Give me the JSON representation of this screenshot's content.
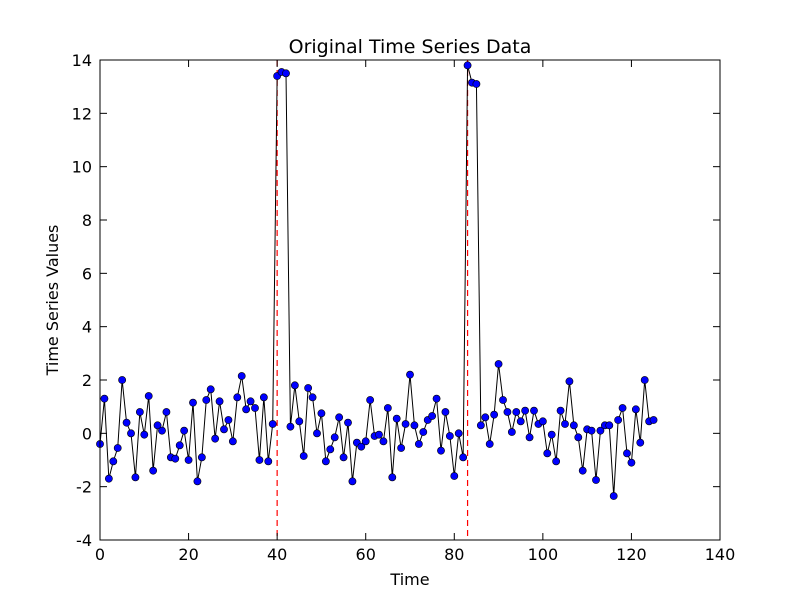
{
  "chart_data": {
    "type": "line",
    "title": "Original Time Series Data",
    "xlabel": "Time",
    "ylabel": "Time Series Values",
    "xlim": [
      0,
      140
    ],
    "ylim": [
      -4,
      14
    ],
    "xticks": [
      0,
      20,
      40,
      60,
      80,
      100,
      120,
      140
    ],
    "yticks": [
      -4,
      -2,
      0,
      2,
      4,
      6,
      8,
      10,
      12,
      14
    ],
    "grid": false,
    "legend": "none",
    "x_start": 0,
    "x_step": 1,
    "series": [
      {
        "color": "#0000ff",
        "line_color": "#000000",
        "marker": "circle",
        "values": [
          -0.4,
          1.3,
          -1.7,
          -1.05,
          -0.55,
          2.0,
          0.4,
          0.0,
          -1.65,
          0.8,
          -0.05,
          1.4,
          -1.4,
          0.3,
          0.1,
          0.8,
          -0.9,
          -0.95,
          -0.45,
          0.1,
          -1.0,
          1.15,
          -1.8,
          -0.9,
          1.25,
          1.65,
          -0.2,
          1.2,
          0.15,
          0.5,
          -0.3,
          1.35,
          2.15,
          0.9,
          1.2,
          0.95,
          -1.0,
          1.35,
          -1.05,
          0.35,
          13.4,
          13.55,
          13.5,
          0.25,
          1.8,
          0.45,
          -0.85,
          1.7,
          1.35,
          0.0,
          0.75,
          -1.05,
          -0.6,
          -0.15,
          0.6,
          -0.9,
          0.4,
          -1.8,
          -0.35,
          -0.5,
          -0.3,
          1.25,
          -0.1,
          -0.05,
          -0.3,
          0.95,
          -1.65,
          0.55,
          -0.55,
          0.35,
          2.2,
          0.3,
          -0.4,
          0.05,
          0.5,
          0.65,
          1.3,
          -0.65,
          0.8,
          -0.1,
          -1.6,
          0.0,
          -0.9,
          13.8,
          13.15,
          13.1,
          0.3,
          0.6,
          -0.4,
          0.7,
          2.6,
          1.25,
          0.8,
          0.05,
          0.8,
          0.45,
          0.85,
          -0.15,
          0.85,
          0.35,
          0.45,
          -0.75,
          -0.05,
          -1.05,
          0.85,
          0.35,
          1.95,
          0.3,
          -0.15,
          -1.4,
          0.15,
          0.1,
          -1.75,
          0.1,
          0.3,
          0.3,
          -2.35,
          0.5,
          0.95,
          -0.75,
          -1.1,
          0.9,
          -0.35,
          2.0,
          0.45,
          0.5
        ]
      }
    ],
    "vlines": [
      {
        "x": 40,
        "color": "#ff0000",
        "style": "dashed"
      },
      {
        "x": 83,
        "color": "#ff0000",
        "style": "dashed"
      }
    ]
  }
}
